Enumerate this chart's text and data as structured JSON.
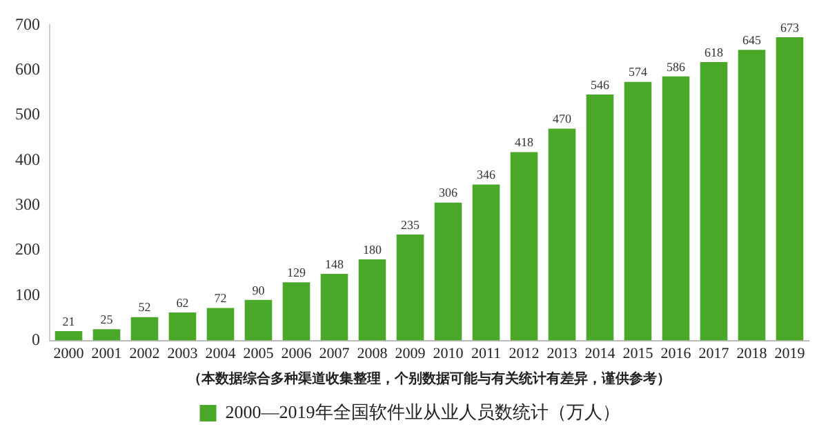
{
  "chart_data": {
    "type": "bar",
    "categories": [
      "2000",
      "2001",
      "2002",
      "2003",
      "2004",
      "2005",
      "2006",
      "2007",
      "2008",
      "2009",
      "2010",
      "2011",
      "2012",
      "2013",
      "2014",
      "2015",
      "2016",
      "2017",
      "2018",
      "2019"
    ],
    "series": [
      {
        "name": "2000—2019年全国软件业从业人员数统计（万人）",
        "color": "#4aa828",
        "values": [
          21,
          25,
          52,
          62,
          72,
          90,
          129,
          148,
          180,
          235,
          306,
          346,
          418,
          470,
          546,
          574,
          586,
          618,
          645,
          673
        ]
      }
    ],
    "ylim": [
      0,
      700
    ],
    "yticks": [
      0,
      100,
      200,
      300,
      400,
      500,
      600,
      700
    ],
    "data_labels": true,
    "grid": false,
    "legend": "bottom",
    "annotations": [
      "（本数据综合多种渠道收集整理，个别数据可能与有关统计有差异，谨供参考）"
    ]
  }
}
